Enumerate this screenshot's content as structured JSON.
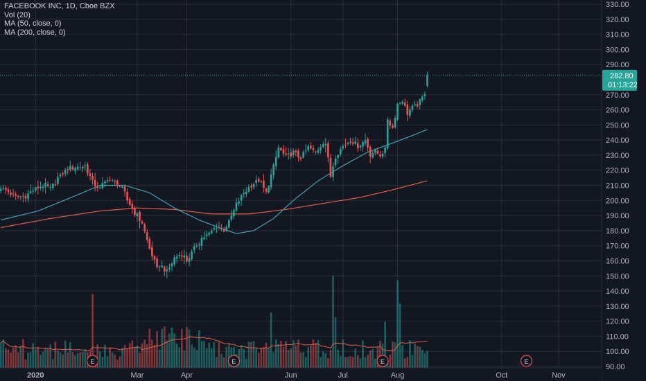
{
  "legend": {
    "title": "FACEBOOK INC, 1D, Cboe BZX",
    "vol": "Vol (20)",
    "ma50": "MA (50, close, 0)",
    "ma200": "MA (200, close, 0)"
  },
  "price_tag": "282.80",
  "countdown": "01:13:22",
  "earnings_marker_text": "E",
  "colors": {
    "background": "#131722",
    "grid": "#2a2e39",
    "up": "#26a69a",
    "down": "#ef5350",
    "ma50": "#3ea2b4",
    "ma200": "#e0623f",
    "vol_ma": "#e0623f",
    "text": "#d1d4dc",
    "axis_text": "#b2b5be"
  },
  "chart_data": {
    "type": "candlestick",
    "symbol": "FACEBOOK INC",
    "interval": "1D",
    "exchange": "Cboe BZX",
    "y_axis": {
      "side": "right",
      "range": [
        88,
        332
      ],
      "ticks": [
        "330.00",
        "320.00",
        "310.00",
        "300.00",
        "290.00",
        "270.00",
        "260.00",
        "250.00",
        "240.00",
        "230.00",
        "220.00",
        "210.00",
        "200.00",
        "190.00",
        "180.00",
        "170.00",
        "160.00",
        "150.00",
        "140.00",
        "130.00",
        "120.00",
        "110.00",
        "100.00",
        "90.00"
      ]
    },
    "x_axis": {
      "ticks": [
        {
          "label": "2020",
          "day": 14
        },
        {
          "label": "Mar",
          "day": 55
        },
        {
          "label": "Apr",
          "day": 75
        },
        {
          "label": "Jun",
          "day": 117
        },
        {
          "label": "Jul",
          "day": 138
        },
        {
          "label": "Aug",
          "day": 160
        },
        {
          "label": "Oct",
          "day": 202
        },
        {
          "label": "Nov",
          "day": 225
        }
      ]
    },
    "last_price": 282.8,
    "grid": true,
    "legend_position": "top-left",
    "keypoints": [
      [
        0,
        209
      ],
      [
        6,
        202
      ],
      [
        10,
        203
      ],
      [
        14,
        208
      ],
      [
        17,
        210
      ],
      [
        20,
        208
      ],
      [
        23,
        215
      ],
      [
        27,
        221
      ],
      [
        31,
        222
      ],
      [
        34,
        223
      ],
      [
        37,
        212
      ],
      [
        40,
        208
      ],
      [
        43,
        214
      ],
      [
        46,
        212
      ],
      [
        49,
        208
      ],
      [
        51,
        200
      ],
      [
        54,
        192
      ],
      [
        57,
        185
      ],
      [
        60,
        168
      ],
      [
        63,
        155
      ],
      [
        64,
        158
      ],
      [
        67,
        152
      ],
      [
        70,
        162
      ],
      [
        73,
        165
      ],
      [
        75,
        160
      ],
      [
        78,
        168
      ],
      [
        81,
        175
      ],
      [
        84,
        178
      ],
      [
        87,
        183
      ],
      [
        90,
        180
      ],
      [
        92,
        186
      ],
      [
        95,
        197
      ],
      [
        98,
        205
      ],
      [
        101,
        210
      ],
      [
        104,
        213
      ],
      [
        107,
        205
      ],
      [
        110,
        222
      ],
      [
        112,
        235
      ],
      [
        115,
        228
      ],
      [
        118,
        232
      ],
      [
        121,
        228
      ],
      [
        124,
        235
      ],
      [
        127,
        232
      ],
      [
        130,
        238
      ],
      [
        131,
        238
      ],
      [
        133,
        216
      ],
      [
        135,
        230
      ],
      [
        138,
        236
      ],
      [
        141,
        240
      ],
      [
        144,
        236
      ],
      [
        147,
        240
      ],
      [
        149,
        231
      ],
      [
        151,
        232
      ],
      [
        153,
        230
      ],
      [
        155,
        233
      ],
      [
        156,
        254
      ],
      [
        158,
        248
      ],
      [
        160,
        264
      ],
      [
        162,
        266
      ],
      [
        164,
        258
      ],
      [
        166,
        262
      ],
      [
        168,
        263
      ],
      [
        170,
        268
      ],
      [
        171,
        272
      ],
      [
        172,
        282.8
      ]
    ],
    "ma50_keypoints": [
      [
        0,
        187
      ],
      [
        15,
        193
      ],
      [
        30,
        203
      ],
      [
        40,
        210
      ],
      [
        50,
        210
      ],
      [
        60,
        205
      ],
      [
        70,
        195
      ],
      [
        80,
        187
      ],
      [
        88,
        182
      ],
      [
        95,
        178
      ],
      [
        102,
        180
      ],
      [
        110,
        188
      ],
      [
        118,
        200
      ],
      [
        128,
        213
      ],
      [
        138,
        223
      ],
      [
        148,
        232
      ],
      [
        158,
        238
      ],
      [
        166,
        243
      ],
      [
        172,
        247
      ]
    ],
    "ma200_keypoints": [
      [
        0,
        182
      ],
      [
        20,
        188
      ],
      [
        40,
        193
      ],
      [
        55,
        195
      ],
      [
        70,
        194
      ],
      [
        85,
        191
      ],
      [
        100,
        191
      ],
      [
        115,
        194
      ],
      [
        130,
        198
      ],
      [
        145,
        202
      ],
      [
        158,
        207
      ],
      [
        172,
        213
      ]
    ],
    "volume": {
      "scale_max": 1,
      "base_level": 0.25,
      "spikes": [
        {
          "day": 37,
          "level": 0.8
        },
        {
          "day": 66,
          "level": 0.45
        },
        {
          "day": 109,
          "level": 0.6
        },
        {
          "day": 134,
          "level": 1.0
        },
        {
          "day": 135,
          "level": 0.55
        },
        {
          "day": 155,
          "level": 0.5
        },
        {
          "day": 160,
          "level": 0.95
        },
        {
          "day": 161,
          "level": 0.7
        }
      ]
    },
    "earnings_days": [
      37,
      94,
      154,
      212
    ]
  }
}
